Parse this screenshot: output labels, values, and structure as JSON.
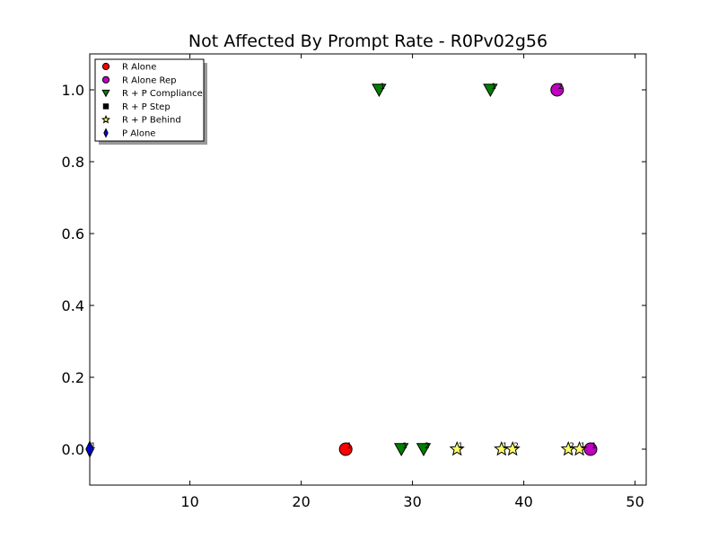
{
  "chart_data": {
    "type": "scatter",
    "title": "Not Affected By Prompt Rate - R0Pv02g56",
    "xlabel": "",
    "ylabel": "",
    "xlim": [
      1,
      51
    ],
    "ylim": [
      -0.1,
      1.1
    ],
    "x_ticks": [
      10,
      20,
      30,
      40,
      50
    ],
    "y_ticks": [
      0.0,
      0.2,
      0.4,
      0.6,
      0.8,
      1.0
    ],
    "x_tick_labels": [
      "10",
      "20",
      "30",
      "40",
      "50"
    ],
    "y_tick_labels": [
      "0.0",
      "0.2",
      "0.4",
      "0.6",
      "0.8",
      "1.0"
    ],
    "grid": false,
    "legend_position": "top-left",
    "series": [
      {
        "name": "R Alone",
        "marker": "circle",
        "color": "#ff0000",
        "points": [
          {
            "x": 24,
            "y": 0.0,
            "label": "1"
          }
        ]
      },
      {
        "name": "R Alone Rep",
        "marker": "circle",
        "color": "#bf00bf",
        "points": [
          {
            "x": 43,
            "y": 1.0,
            "label": "2"
          },
          {
            "x": 46,
            "y": 0.0,
            "label": "1"
          }
        ]
      },
      {
        "name": "R + P Compliance",
        "marker": "triangle-down",
        "color": "#008000",
        "points": [
          {
            "x": 27,
            "y": 1.0,
            "label": "1"
          },
          {
            "x": 37,
            "y": 1.0,
            "label": "1"
          },
          {
            "x": 29,
            "y": 0.0,
            "label": "1"
          },
          {
            "x": 31,
            "y": 0.0,
            "label": "2"
          }
        ]
      },
      {
        "name": "R + P Step",
        "marker": "square",
        "color": "#000000",
        "points": []
      },
      {
        "name": "R + P Behind",
        "marker": "star",
        "color": "#ffff66",
        "points": [
          {
            "x": 34,
            "y": 0.0,
            "label": "1"
          },
          {
            "x": 38,
            "y": 0.0,
            "label": "1"
          },
          {
            "x": 39,
            "y": 0.0,
            "label": "2"
          },
          {
            "x": 44,
            "y": 0.0,
            "label": "2"
          },
          {
            "x": 45,
            "y": 0.0,
            "label": "1"
          }
        ]
      },
      {
        "name": "P Alone",
        "marker": "diamond",
        "color": "#0000ff",
        "points": [
          {
            "x": 1,
            "y": 0.0,
            "label": "1"
          }
        ]
      }
    ]
  }
}
